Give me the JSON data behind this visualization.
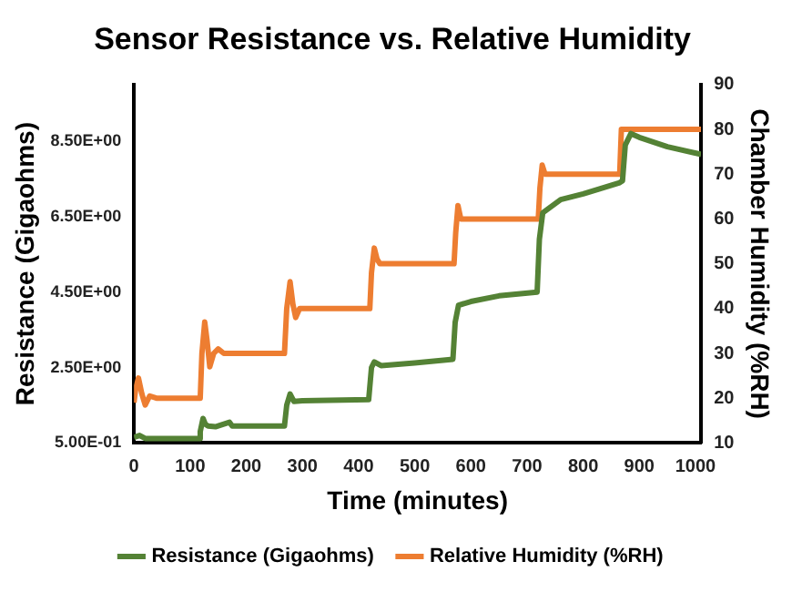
{
  "chart_data": {
    "type": "line",
    "title": "Sensor Resistance vs. Relative Humidity",
    "xlabel": "Time (minutes)",
    "ylabel": "Resistance (Gigaohms)",
    "y2label": "Chamber Humidity (%RH)",
    "xlim": [
      0,
      1010
    ],
    "xticks": [
      0,
      100,
      200,
      300,
      400,
      500,
      600,
      700,
      800,
      900,
      1000
    ],
    "ylim": [
      0.5,
      10
    ],
    "yticks": [
      {
        "value": 0.5,
        "label": "5.00E-01"
      },
      {
        "value": 2.5,
        "label": "2.50E+00"
      },
      {
        "value": 4.5,
        "label": "4.50E+00"
      },
      {
        "value": 6.5,
        "label": "6.50E+00"
      },
      {
        "value": 8.5,
        "label": "8.50E+00"
      }
    ],
    "y2lim": [
      10,
      90
    ],
    "y2ticks": [
      10,
      20,
      30,
      40,
      50,
      60,
      70,
      80,
      90
    ],
    "grid": false,
    "legend": "bottom",
    "marker": "none",
    "line_style": "solid",
    "series": [
      {
        "name": "Resistance (Gigaohms)",
        "color": "#548235",
        "x": [
          0,
          10,
          20,
          115,
          118,
          123,
          127,
          132,
          145,
          170,
          175,
          268,
          272,
          278,
          285,
          300,
          418,
          423,
          428,
          440,
          500,
          568,
          572,
          578,
          600,
          650,
          718,
          722,
          728,
          760,
          800,
          865,
          870,
          875,
          885,
          900,
          950,
          1010
        ],
        "values": [
          0.65,
          0.7,
          0.62,
          0.62,
          0.8,
          1.15,
          1.0,
          0.95,
          0.93,
          1.05,
          0.95,
          0.95,
          1.5,
          1.8,
          1.6,
          1.62,
          1.65,
          2.5,
          2.65,
          2.55,
          2.62,
          2.72,
          3.7,
          4.15,
          4.25,
          4.4,
          4.5,
          5.9,
          6.6,
          6.95,
          7.1,
          7.4,
          7.45,
          8.4,
          8.7,
          8.6,
          8.35,
          8.15
        ]
      },
      {
        "name": "Relative Humidity (%RH)",
        "color": "#ed7d31",
        "axis": "y2",
        "x": [
          0,
          3,
          8,
          14,
          20,
          28,
          40,
          118,
          121,
          126,
          130,
          135,
          142,
          150,
          160,
          268,
          272,
          278,
          283,
          288,
          295,
          420,
          423,
          428,
          433,
          438,
          570,
          573,
          577,
          582,
          720,
          723,
          727,
          732,
          865,
          868,
          1010
        ],
        "values": [
          19,
          22,
          24.5,
          21,
          18.5,
          20.5,
          20,
          20,
          30,
          37,
          33,
          27,
          30,
          31,
          30,
          30,
          40,
          46,
          41,
          38,
          40,
          40,
          48,
          53.5,
          51,
          50,
          50,
          57,
          63,
          60,
          60,
          67,
          72,
          70,
          70,
          80,
          80
        ]
      }
    ]
  }
}
